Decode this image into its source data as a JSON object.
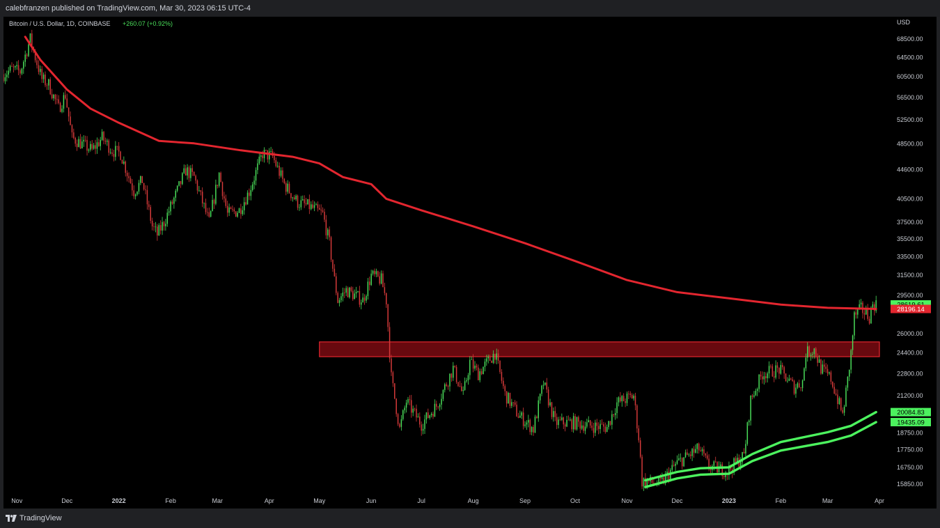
{
  "header": {
    "publisher": "calebfranzen published on TradingView.com, Mar 30, 2023 06:15 UTC-4"
  },
  "footer": {
    "brand": "TradingView"
  },
  "colors": {
    "background": "#000000",
    "up": "#4ade5a",
    "down": "#d63a3a",
    "ma": "#e3262f",
    "band": "#4cf25e",
    "zone": "#7a0b12"
  },
  "chart_data": {
    "type": "candlestick",
    "title": "Bitcoin / U.S. Dollar, 1D, COINBASE",
    "change": "+260.07 (+0.92%)",
    "currency": "USD",
    "y_scale": "log",
    "ylim": [
      15000,
      73000
    ],
    "y_ticks": [
      "68500.00",
      "64500.00",
      "60500.00",
      "56500.00",
      "52500.00",
      "48500.00",
      "44600.00",
      "40500.00",
      "37500.00",
      "35500.00",
      "33500.00",
      "31500.00",
      "29500.00",
      "26000.00",
      "24400.00",
      "22800.00",
      "21200.00",
      "18750.00",
      "17750.00",
      "16750.00",
      "15850.00"
    ],
    "x_range": [
      "2021-10-24",
      "2023-04-06"
    ],
    "x_ticks": [
      {
        "date": "2021-11-01",
        "label": "Nov",
        "bold": false
      },
      {
        "date": "2021-12-01",
        "label": "Dec",
        "bold": false
      },
      {
        "date": "2022-01-01",
        "label": "2022",
        "bold": true
      },
      {
        "date": "2022-02-01",
        "label": "Feb",
        "bold": false
      },
      {
        "date": "2022-03-01",
        "label": "Mar",
        "bold": false
      },
      {
        "date": "2022-04-01",
        "label": "Apr",
        "bold": false
      },
      {
        "date": "2022-05-01",
        "label": "May",
        "bold": false
      },
      {
        "date": "2022-06-01",
        "label": "Jun",
        "bold": false
      },
      {
        "date": "2022-07-01",
        "label": "Jul",
        "bold": false
      },
      {
        "date": "2022-08-01",
        "label": "Aug",
        "bold": false
      },
      {
        "date": "2022-09-01",
        "label": "Sep",
        "bold": false
      },
      {
        "date": "2022-10-01",
        "label": "Oct",
        "bold": false
      },
      {
        "date": "2022-11-01",
        "label": "Nov",
        "bold": false
      },
      {
        "date": "2022-12-01",
        "label": "Dec",
        "bold": false
      },
      {
        "date": "2023-01-01",
        "label": "2023",
        "bold": true
      },
      {
        "date": "2023-02-01",
        "label": "Feb",
        "bold": false
      },
      {
        "date": "2023-03-01",
        "label": "Mar",
        "bold": false
      },
      {
        "date": "2023-04-01",
        "label": "Apr",
        "bold": false
      }
    ],
    "price_path": [
      [
        "2021-10-24",
        61000
      ],
      [
        "2021-10-29",
        62000
      ],
      [
        "2021-11-03",
        61500
      ],
      [
        "2021-11-09",
        68500
      ],
      [
        "2021-11-12",
        64500
      ],
      [
        "2021-11-16",
        60000
      ],
      [
        "2021-11-20",
        59000
      ],
      [
        "2021-11-26",
        54500
      ],
      [
        "2021-11-30",
        57000
      ],
      [
        "2021-12-04",
        49500
      ],
      [
        "2021-12-10",
        48500
      ],
      [
        "2021-12-16",
        47500
      ],
      [
        "2021-12-22",
        49500
      ],
      [
        "2021-12-28",
        47500
      ],
      [
        "2022-01-02",
        47000
      ],
      [
        "2022-01-10",
        41500
      ],
      [
        "2022-01-15",
        43000
      ],
      [
        "2022-01-21",
        37000
      ],
      [
        "2022-01-24",
        36000
      ],
      [
        "2022-01-28",
        37500
      ],
      [
        "2022-02-04",
        41000
      ],
      [
        "2022-02-10",
        44500
      ],
      [
        "2022-02-15",
        43500
      ],
      [
        "2022-02-24",
        37500
      ],
      [
        "2022-03-02",
        44000
      ],
      [
        "2022-03-07",
        38500
      ],
      [
        "2022-03-14",
        39000
      ],
      [
        "2022-03-20",
        41500
      ],
      [
        "2022-03-28",
        47000
      ],
      [
        "2022-04-03",
        46500
      ],
      [
        "2022-04-10",
        42500
      ],
      [
        "2022-04-18",
        40000
      ],
      [
        "2022-04-25",
        39500
      ],
      [
        "2022-05-03",
        38500
      ],
      [
        "2022-05-07",
        35000
      ],
      [
        "2022-05-10",
        31000
      ],
      [
        "2022-05-12",
        29000
      ],
      [
        "2022-05-17",
        30000
      ],
      [
        "2022-05-27",
        29000
      ],
      [
        "2022-06-01",
        31500
      ],
      [
        "2022-06-07",
        31000
      ],
      [
        "2022-06-10",
        29000
      ],
      [
        "2022-06-13",
        22500
      ],
      [
        "2022-06-18",
        19000
      ],
      [
        "2022-06-22",
        20800
      ],
      [
        "2022-07-01",
        19300
      ],
      [
        "2022-07-10",
        20500
      ],
      [
        "2022-07-20",
        23200
      ],
      [
        "2022-07-26",
        21200
      ],
      [
        "2022-07-30",
        23700
      ],
      [
        "2022-08-04",
        22800
      ],
      [
        "2022-08-14",
        24400
      ],
      [
        "2022-08-20",
        21300
      ],
      [
        "2022-08-28",
        19900
      ],
      [
        "2022-09-06",
        19000
      ],
      [
        "2022-09-12",
        22100
      ],
      [
        "2022-09-19",
        19400
      ],
      [
        "2022-09-30",
        19400
      ],
      [
        "2022-10-10",
        19200
      ],
      [
        "2022-10-20",
        19100
      ],
      [
        "2022-10-26",
        20700
      ],
      [
        "2022-11-05",
        21200
      ],
      [
        "2022-11-08",
        18500
      ],
      [
        "2022-11-10",
        16000
      ],
      [
        "2022-11-21",
        15850
      ],
      [
        "2022-12-01",
        17000
      ],
      [
        "2022-12-14",
        17800
      ],
      [
        "2022-12-20",
        16800
      ],
      [
        "2022-12-31",
        16550
      ],
      [
        "2023-01-10",
        17400
      ],
      [
        "2023-01-14",
        20900
      ],
      [
        "2023-01-21",
        22800
      ],
      [
        "2023-01-31",
        23100
      ],
      [
        "2023-02-09",
        21800
      ],
      [
        "2023-02-14",
        22200
      ],
      [
        "2023-02-16",
        24400
      ],
      [
        "2023-02-21",
        24700
      ],
      [
        "2023-02-25",
        23200
      ],
      [
        "2023-03-03",
        22400
      ],
      [
        "2023-03-10",
        19900
      ],
      [
        "2023-03-13",
        22300
      ],
      [
        "2023-03-15",
        24400
      ],
      [
        "2023-03-17",
        27500
      ],
      [
        "2023-03-21",
        28200
      ],
      [
        "2023-03-26",
        27500
      ],
      [
        "2023-03-28",
        28600
      ],
      [
        "2023-03-30",
        28620
      ]
    ],
    "series": [
      {
        "name": "",
        "color": "#e3262f",
        "last_value": "28196.14",
        "points": [
          [
            "2021-11-06",
            69000
          ],
          [
            "2021-11-15",
            64000
          ],
          [
            "2021-12-01",
            58000
          ],
          [
            "2021-12-15",
            54500
          ],
          [
            "2022-01-01",
            52000
          ],
          [
            "2022-01-25",
            49000
          ],
          [
            "2022-02-15",
            48600
          ],
          [
            "2022-03-15",
            47500
          ],
          [
            "2022-04-15",
            46500
          ],
          [
            "2022-05-01",
            45500
          ],
          [
            "2022-05-15",
            43500
          ],
          [
            "2022-06-01",
            42500
          ],
          [
            "2022-06-10",
            40500
          ],
          [
            "2022-07-01",
            39000
          ],
          [
            "2022-08-01",
            37000
          ],
          [
            "2022-09-01",
            35000
          ],
          [
            "2022-10-01",
            33000
          ],
          [
            "2022-11-01",
            31000
          ],
          [
            "2022-12-01",
            29800
          ],
          [
            "2023-01-01",
            29200
          ],
          [
            "2023-02-01",
            28600
          ],
          [
            "2023-03-01",
            28300
          ],
          [
            "2023-03-30",
            28196
          ]
        ]
      },
      {
        "name": "",
        "color": "#4cf25e",
        "last_value": "20084.83",
        "points": [
          [
            "2022-11-12",
            16050
          ],
          [
            "2022-12-01",
            16500
          ],
          [
            "2022-12-15",
            16700
          ],
          [
            "2023-01-01",
            16750
          ],
          [
            "2023-01-15",
            17500
          ],
          [
            "2023-02-01",
            18200
          ],
          [
            "2023-02-15",
            18500
          ],
          [
            "2023-03-01",
            18800
          ],
          [
            "2023-03-15",
            19200
          ],
          [
            "2023-03-30",
            20085
          ]
        ]
      },
      {
        "name": "",
        "color": "#4cf25e",
        "last_value": "19435.09",
        "points": [
          [
            "2022-11-12",
            15700
          ],
          [
            "2022-12-01",
            16150
          ],
          [
            "2022-12-15",
            16350
          ],
          [
            "2023-01-01",
            16400
          ],
          [
            "2023-01-15",
            17100
          ],
          [
            "2023-02-01",
            17700
          ],
          [
            "2023-02-15",
            17950
          ],
          [
            "2023-03-01",
            18200
          ],
          [
            "2023-03-15",
            18600
          ],
          [
            "2023-03-30",
            19435
          ]
        ]
      }
    ],
    "zone": {
      "x0": "2022-05-01",
      "x1": "2023-04-01",
      "y_low": 24100,
      "y_high": 25300
    },
    "last_price_label": "28619.61"
  }
}
